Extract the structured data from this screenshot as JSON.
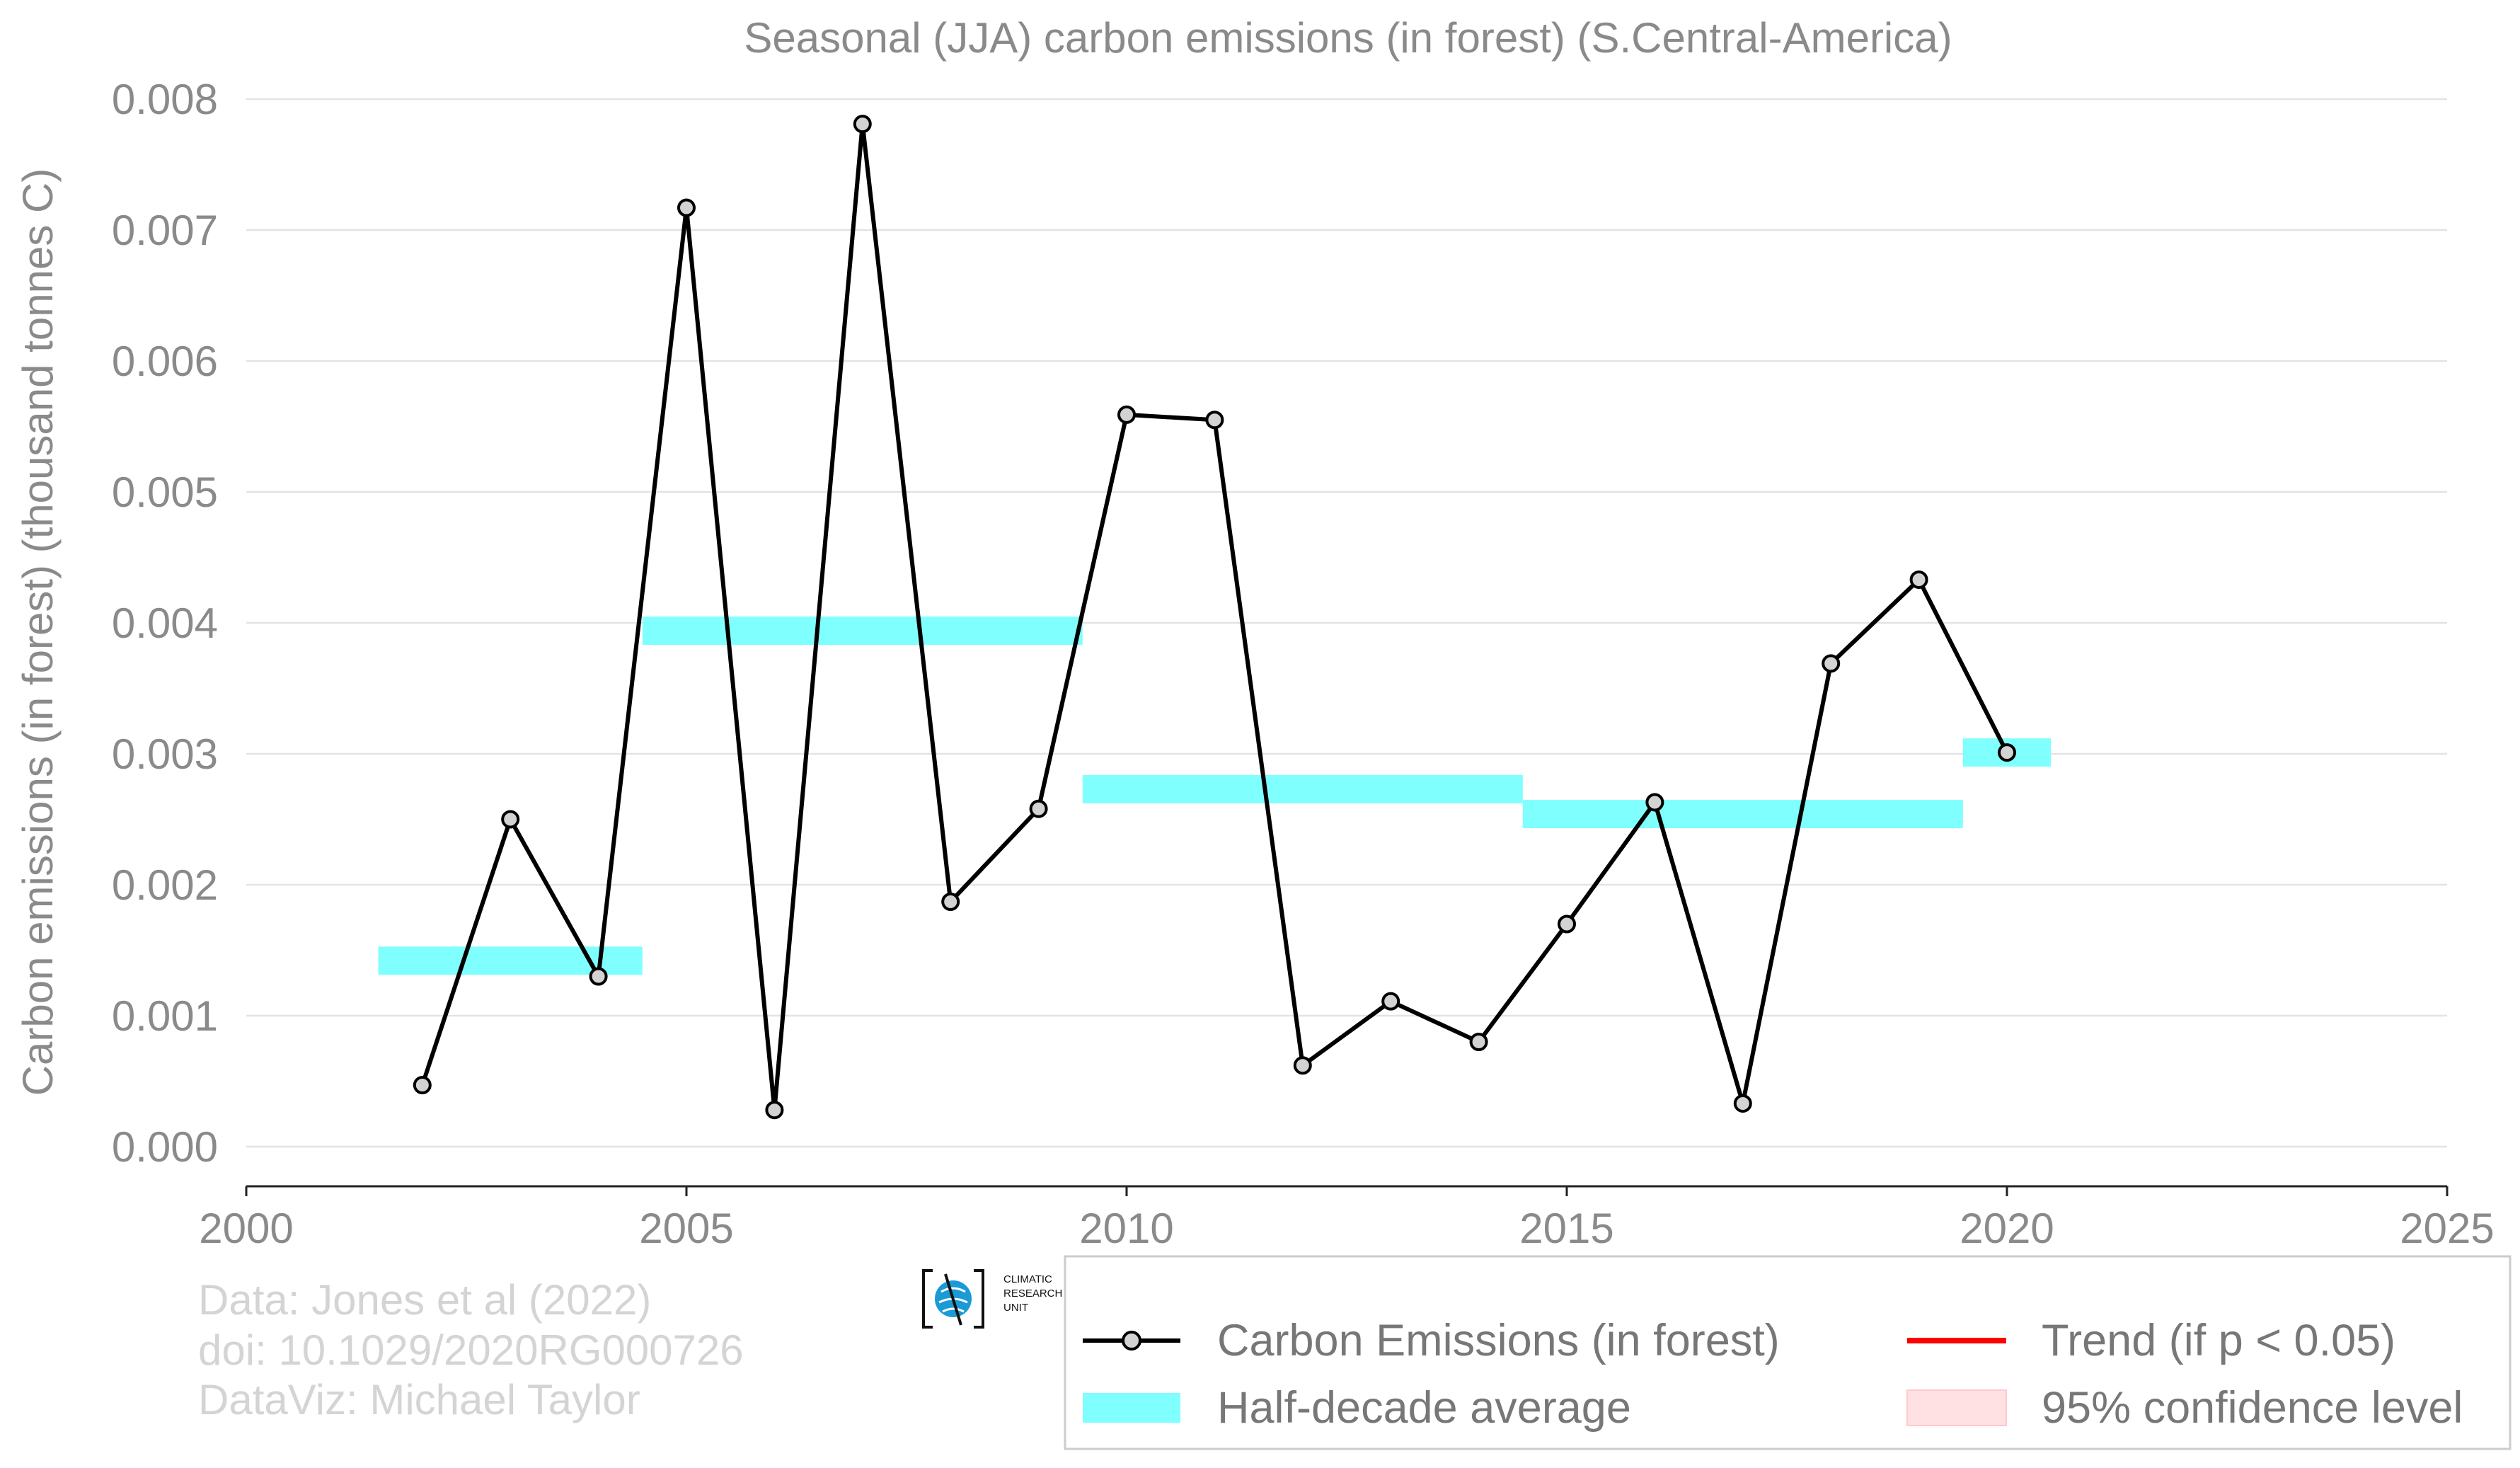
{
  "chart_data": {
    "type": "line",
    "title": "Seasonal (JJA) carbon emissions (in forest) (S.Central-America)",
    "xlabel": "",
    "ylabel": "Carbon emissions (in forest) (thousand tonnes C)",
    "xlim": [
      2000,
      2025
    ],
    "ylim": [
      0.0,
      0.008
    ],
    "x_ticks": [
      "2000",
      "2005",
      "2010",
      "2015",
      "2020",
      "2025"
    ],
    "y_ticks": [
      "0.000",
      "0.001",
      "0.002",
      "0.003",
      "0.004",
      "0.005",
      "0.006",
      "0.007",
      "0.008"
    ],
    "grid": "horizontal",
    "series": [
      {
        "name": "Carbon Emissions (in forest)",
        "color": "#000000",
        "marker_fill": "#d3d3d3",
        "x": [
          2002,
          2003,
          2004,
          2005,
          2006,
          2007,
          2008,
          2009,
          2010,
          2011,
          2012,
          2013,
          2014,
          2015,
          2016,
          2017,
          2018,
          2019,
          2020
        ],
        "y": [
          0.00047,
          0.0025,
          0.0013,
          0.00717,
          0.00028,
          0.00781,
          0.00187,
          0.00258,
          0.00559,
          0.00555,
          0.00062,
          0.00111,
          0.0008,
          0.0017,
          0.00263,
          0.00033,
          0.00369,
          0.00433,
          0.00301
        ]
      }
    ],
    "half_decade_average": {
      "name": "Half-decade average",
      "color": "#80ffff",
      "segments": [
        {
          "x_start": 2001.5,
          "x_end": 2004.5,
          "value": 0.00142
        },
        {
          "x_start": 2004.5,
          "x_end": 2009.5,
          "value": 0.00394
        },
        {
          "x_start": 2009.5,
          "x_end": 2014.5,
          "value": 0.00273
        },
        {
          "x_start": 2014.5,
          "x_end": 2019.5,
          "value": 0.00254
        },
        {
          "x_start": 2019.5,
          "x_end": 2020.5,
          "value": 0.00301
        }
      ]
    },
    "legend": {
      "placement": "bottom-right",
      "items": [
        {
          "label": "Carbon Emissions (in forest)",
          "kind": "line-marker",
          "color": "#000000"
        },
        {
          "label": "Trend (if p < 0.05)",
          "kind": "line",
          "color": "#ff0000"
        },
        {
          "label": "Half-decade average",
          "kind": "patch",
          "color": "#80ffff"
        },
        {
          "label": "95% confidence level",
          "kind": "patch",
          "color": "#ffe0e3"
        }
      ]
    }
  },
  "credits": {
    "line1": "Data: Jones et al (2022)",
    "line2": "doi: 10.1029/2020RG000726",
    "line3": "DataViz: Michael Taylor"
  },
  "logo": {
    "icon": "globe-icon",
    "line1": "CLIMATIC",
    "line2": "RESEARCH",
    "line3": "UNIT"
  }
}
